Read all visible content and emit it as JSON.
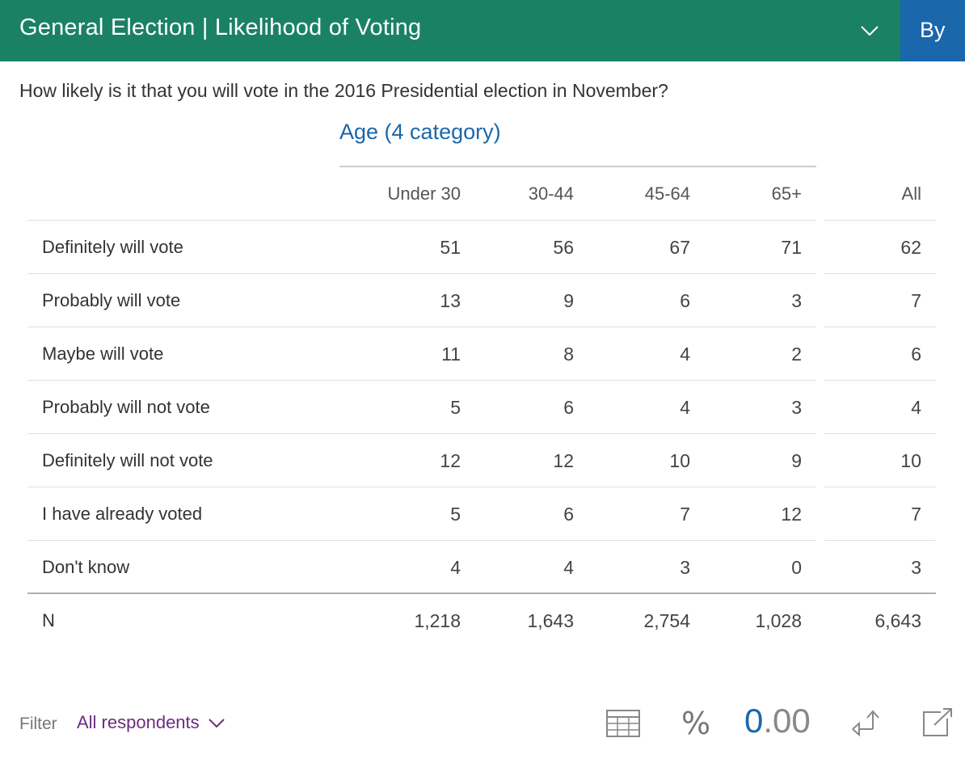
{
  "header": {
    "title": "General Election | Likelihood of Voting",
    "by_label": "By"
  },
  "question": "How likely is it that you will vote in the 2016 Presidential election in November?",
  "group": {
    "label": "Age (4 category)"
  },
  "table": {
    "columns": [
      "Under 30",
      "30-44",
      "45-64",
      "65+",
      "All"
    ],
    "rows": [
      {
        "label": "Definitely will vote",
        "values": [
          "51",
          "56",
          "67",
          "71",
          "62"
        ]
      },
      {
        "label": "Probably will vote",
        "values": [
          "13",
          "9",
          "6",
          "3",
          "7"
        ]
      },
      {
        "label": "Maybe will vote",
        "values": [
          "11",
          "8",
          "4",
          "2",
          "6"
        ]
      },
      {
        "label": "Probably will not vote",
        "values": [
          "5",
          "6",
          "4",
          "3",
          "4"
        ]
      },
      {
        "label": "Definitely will not vote",
        "values": [
          "12",
          "12",
          "10",
          "9",
          "10"
        ]
      },
      {
        "label": "I have already voted",
        "values": [
          "5",
          "6",
          "7",
          "12",
          "7"
        ]
      },
      {
        "label": "Don't know",
        "values": [
          "4",
          "4",
          "3",
          "0",
          "3"
        ]
      }
    ],
    "n_row": {
      "label": "N",
      "values": [
        "1,218",
        "1,643",
        "2,754",
        "1,028",
        "6,643"
      ]
    }
  },
  "footer": {
    "filter_label": "Filter",
    "filter_value": "All respondents",
    "percent_symbol": "%",
    "decimals_lead": "0",
    "decimals_rest": ".00"
  },
  "icons": {
    "header_dropdown": "chevron-down-icon",
    "filter_dropdown": "chevron-down-icon",
    "table_view": "table-grid-icon",
    "swap": "swap-axes-icon",
    "popout": "popout-icon"
  },
  "colors": {
    "header_bg": "#1b8166",
    "by_bg": "#1a67ab",
    "accent_blue": "#1a67ab",
    "filter_purple": "#6b2d7e"
  }
}
